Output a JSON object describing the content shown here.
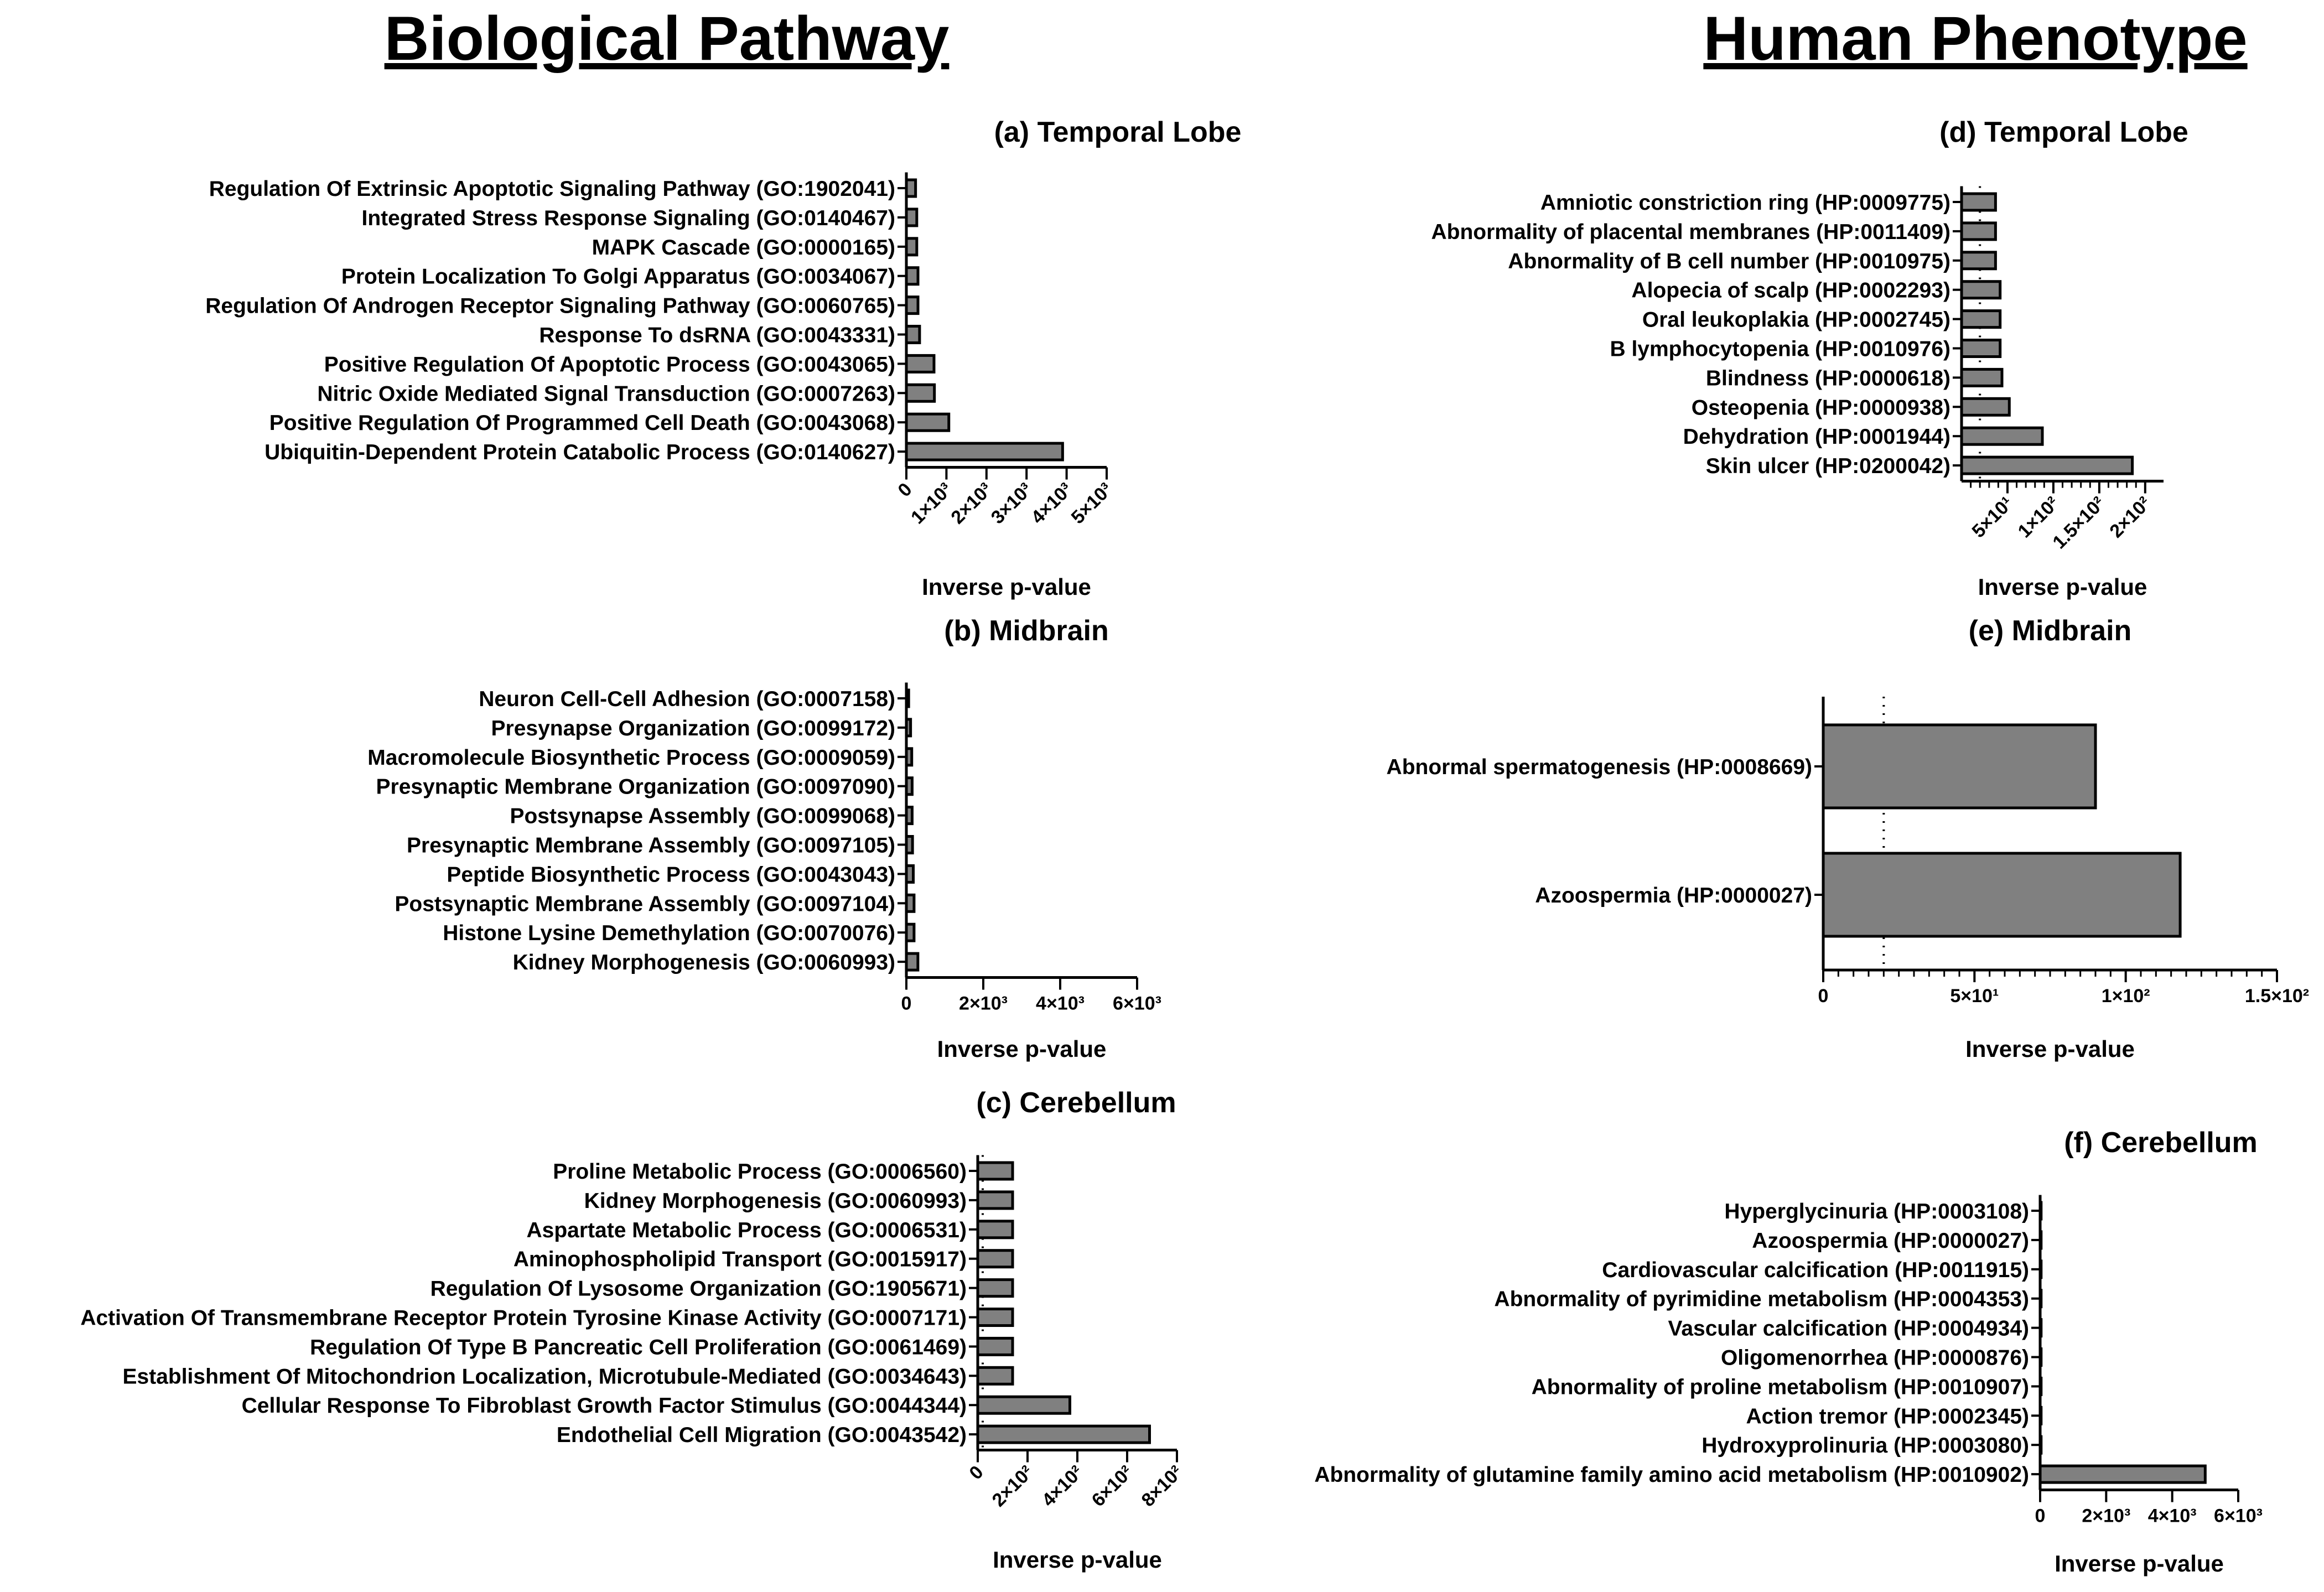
{
  "headings": {
    "left": "Biological  Pathway",
    "right": "Human  Phenotype"
  },
  "colors": {
    "bar_fill": "#808080",
    "bar_stroke": "#000000",
    "axis": "#000000",
    "text": "#000000"
  },
  "chart_data": [
    {
      "id": "a",
      "type": "bar",
      "orientation": "horizontal",
      "title": "(a) Temporal Lobe",
      "xlabel": "Inverse p-value",
      "ylabel": "",
      "xlim": [
        0,
        5000
      ],
      "ticks": [
        0,
        1000,
        2000,
        3000,
        4000,
        5000
      ],
      "tick_labels": [
        "0",
        "1×10³",
        "2×10³",
        "3×10³",
        "4×10³",
        "5×10³"
      ],
      "minor_ticks": [],
      "categories": [
        "Regulation Of Extrinsic Apoptotic Signaling Pathway (GO:1902041)",
        "Integrated Stress Response Signaling (GO:0140467)",
        "MAPK Cascade (GO:0000165)",
        "Protein Localization To Golgi Apparatus (GO:0034067)",
        "Regulation Of Androgen Receptor Signaling Pathway (GO:0060765)",
        "Response To dsRNA (GO:0043331)",
        "Positive Regulation Of Apoptotic Process (GO:0043065)",
        "Nitric Oxide Mediated Signal Transduction (GO:0007263)",
        "Positive Regulation Of Programmed Cell Death (GO:0043068)",
        "Ubiquitin-Dependent Protein Catabolic Process (GO:0140627)"
      ],
      "values": [
        230,
        260,
        260,
        290,
        290,
        330,
        690,
        700,
        1060,
        3900
      ],
      "threshold": null
    },
    {
      "id": "b",
      "type": "bar",
      "orientation": "horizontal",
      "title": "(b) Midbrain",
      "xlabel": "Inverse p-value",
      "ylabel": "",
      "xlim": [
        0,
        6000
      ],
      "ticks": [
        0,
        2000,
        4000,
        6000
      ],
      "tick_labels": [
        "0",
        "2×10³",
        "4×10³",
        "6×10³"
      ],
      "minor_ticks": [],
      "categories": [
        "Neuron Cell-Cell Adhesion (GO:0007158)",
        "Presynapse Organization (GO:0099172)",
        "Macromolecule Biosynthetic Process (GO:0009059)",
        "Presynaptic Membrane Organization (GO:0097090)",
        "Postsynapse Assembly (GO:0099068)",
        "Presynaptic Membrane Assembly (GO:0097105)",
        "Peptide Biosynthetic Process (GO:0043043)",
        "Postsynaptic Membrane Assembly (GO:0097104)",
        "Histone Lysine Demethylation (GO:0070076)",
        "Kidney Morphogenesis (GO:0060993)"
      ],
      "values": [
        60,
        110,
        140,
        150,
        150,
        160,
        180,
        200,
        200,
        300
      ],
      "threshold": null
    },
    {
      "id": "c",
      "type": "bar",
      "orientation": "horizontal",
      "title": "(c) Cerebellum",
      "xlabel": "Inverse p-value",
      "ylabel": "",
      "xlim": [
        0,
        800
      ],
      "ticks": [
        0,
        200,
        400,
        600,
        800
      ],
      "tick_labels": [
        "0",
        "2×10²",
        "4×10²",
        "6×10²",
        "8×10²"
      ],
      "minor_ticks": [],
      "categories": [
        "Proline Metabolic Process (GO:0006560)",
        "Kidney Morphogenesis (GO:0060993)",
        "Aspartate Metabolic Process (GO:0006531)",
        "Aminophospholipid Transport (GO:0015917)",
        "Regulation Of Lysosome Organization (GO:1905671)",
        "Activation Of Transmembrane Receptor Protein Tyrosine Kinase Activity (GO:0007171)",
        "Regulation Of Type B Pancreatic Cell Proliferation (GO:0061469)",
        "Establishment Of Mitochondrion Localization, Microtubule-Mediated (GO:0034643)",
        "Cellular Response To Fibroblast Growth Factor Stimulus (GO:0044344)",
        "Endothelial Cell Migration (GO:0043542)"
      ],
      "values": [
        140,
        140,
        140,
        140,
        140,
        140,
        140,
        140,
        370,
        690
      ],
      "threshold": 20
    },
    {
      "id": "d",
      "type": "bar",
      "orientation": "horizontal",
      "title": "(d) Temporal Lobe",
      "xlabel": "Inverse p-value",
      "ylabel": "",
      "xlim": [
        0,
        220
      ],
      "ticks": [
        50,
        100,
        150,
        200
      ],
      "tick_labels": [
        "5×10¹",
        "1×10²",
        "1.5×10²",
        "2×10²"
      ],
      "minor_ticks": [
        10,
        20,
        30,
        40,
        60,
        70,
        80,
        90,
        110,
        120,
        130,
        140,
        160,
        170,
        180,
        190
      ],
      "categories": [
        "Amniotic constriction ring (HP:0009775)",
        "Abnormality of placental membranes (HP:0011409)",
        "Abnormality of B cell number (HP:0010975)",
        "Alopecia of scalp (HP:0002293)",
        "Oral leukoplakia (HP:0002745)",
        "B lymphocytopenia (HP:0010976)",
        "Blindness (HP:0000618)",
        "Osteopenia (HP:0000938)",
        "Dehydration (HP:0001944)",
        "Skin ulcer (HP:0200042)"
      ],
      "values": [
        37,
        37,
        37,
        42,
        42,
        42,
        44,
        52,
        88,
        186
      ],
      "threshold": 20
    },
    {
      "id": "e",
      "type": "bar",
      "orientation": "horizontal",
      "title": "(e) Midbrain",
      "xlabel": "Inverse p-value",
      "ylabel": "",
      "xlim": [
        0,
        150
      ],
      "ticks": [
        0,
        50,
        100,
        150
      ],
      "tick_labels": [
        "0",
        "5×10¹",
        "1×10²",
        "1.5×10²"
      ],
      "minor_ticks": [
        5,
        10,
        15,
        20,
        25,
        30,
        35,
        40,
        45,
        55,
        60,
        65,
        70,
        75,
        80,
        85,
        90,
        95,
        105,
        110,
        115,
        120,
        125,
        130,
        135,
        140,
        145
      ],
      "categories": [
        "Abnormal spermatogenesis (HP:0008669)",
        "Azoospermia (HP:0000027)"
      ],
      "values": [
        90,
        118
      ],
      "threshold": 20
    },
    {
      "id": "f",
      "type": "bar",
      "orientation": "horizontal",
      "title": "(f) Cerebellum",
      "xlabel": "Inverse p-value",
      "ylabel": "",
      "xlim": [
        0,
        6000
      ],
      "ticks": [
        0,
        2000,
        4000,
        6000
      ],
      "tick_labels": [
        "0",
        "2×10³",
        "4×10³",
        "6×10³"
      ],
      "minor_ticks": [],
      "categories": [
        "Hyperglycinuria (HP:0003108)",
        "Azoospermia (HP:0000027)",
        "Cardiovascular calcification (HP:0011915)",
        "Abnormality of pyrimidine metabolism (HP:0004353)",
        "Vascular calcification (HP:0004934)",
        "Oligomenorrhea (HP:0000876)",
        "Abnormality of proline metabolism (HP:0010907)",
        "Action tremor (HP:0002345)",
        "Hydroxyprolinuria (HP:0003080)",
        "Abnormality of glutamine family amino acid metabolism (HP:0010902)"
      ],
      "values": [
        30,
        30,
        30,
        30,
        30,
        30,
        30,
        30,
        30,
        5000
      ],
      "threshold": null
    }
  ]
}
